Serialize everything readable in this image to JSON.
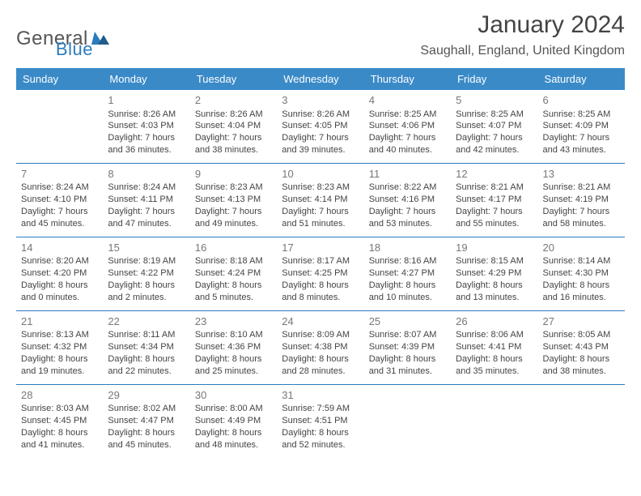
{
  "logo": {
    "part1": "General",
    "part2": "Blue"
  },
  "title": "January 2024",
  "location": "Saughall, England, United Kingdom",
  "colors": {
    "header_bg": "#3a8ac8",
    "header_text": "#ffffff",
    "rule": "#2b7bbd",
    "daynum": "#777777",
    "body_text": "#444444",
    "logo_gray": "#555555",
    "logo_blue": "#2b7bbd",
    "page_bg": "#ffffff"
  },
  "fonts": {
    "title_size_pt": 30,
    "location_size_pt": 16,
    "header_size_pt": 13,
    "daynum_size_pt": 13,
    "cell_size_pt": 11,
    "logo_size_pt": 24
  },
  "weekdays": [
    "Sunday",
    "Monday",
    "Tuesday",
    "Wednesday",
    "Thursday",
    "Friday",
    "Saturday"
  ],
  "weeks": [
    [
      null,
      {
        "n": "1",
        "sr": "Sunrise: 8:26 AM",
        "ss": "Sunset: 4:03 PM",
        "d1": "Daylight: 7 hours",
        "d2": "and 36 minutes."
      },
      {
        "n": "2",
        "sr": "Sunrise: 8:26 AM",
        "ss": "Sunset: 4:04 PM",
        "d1": "Daylight: 7 hours",
        "d2": "and 38 minutes."
      },
      {
        "n": "3",
        "sr": "Sunrise: 8:26 AM",
        "ss": "Sunset: 4:05 PM",
        "d1": "Daylight: 7 hours",
        "d2": "and 39 minutes."
      },
      {
        "n": "4",
        "sr": "Sunrise: 8:25 AM",
        "ss": "Sunset: 4:06 PM",
        "d1": "Daylight: 7 hours",
        "d2": "and 40 minutes."
      },
      {
        "n": "5",
        "sr": "Sunrise: 8:25 AM",
        "ss": "Sunset: 4:07 PM",
        "d1": "Daylight: 7 hours",
        "d2": "and 42 minutes."
      },
      {
        "n": "6",
        "sr": "Sunrise: 8:25 AM",
        "ss": "Sunset: 4:09 PM",
        "d1": "Daylight: 7 hours",
        "d2": "and 43 minutes."
      }
    ],
    [
      {
        "n": "7",
        "sr": "Sunrise: 8:24 AM",
        "ss": "Sunset: 4:10 PM",
        "d1": "Daylight: 7 hours",
        "d2": "and 45 minutes."
      },
      {
        "n": "8",
        "sr": "Sunrise: 8:24 AM",
        "ss": "Sunset: 4:11 PM",
        "d1": "Daylight: 7 hours",
        "d2": "and 47 minutes."
      },
      {
        "n": "9",
        "sr": "Sunrise: 8:23 AM",
        "ss": "Sunset: 4:13 PM",
        "d1": "Daylight: 7 hours",
        "d2": "and 49 minutes."
      },
      {
        "n": "10",
        "sr": "Sunrise: 8:23 AM",
        "ss": "Sunset: 4:14 PM",
        "d1": "Daylight: 7 hours",
        "d2": "and 51 minutes."
      },
      {
        "n": "11",
        "sr": "Sunrise: 8:22 AM",
        "ss": "Sunset: 4:16 PM",
        "d1": "Daylight: 7 hours",
        "d2": "and 53 minutes."
      },
      {
        "n": "12",
        "sr": "Sunrise: 8:21 AM",
        "ss": "Sunset: 4:17 PM",
        "d1": "Daylight: 7 hours",
        "d2": "and 55 minutes."
      },
      {
        "n": "13",
        "sr": "Sunrise: 8:21 AM",
        "ss": "Sunset: 4:19 PM",
        "d1": "Daylight: 7 hours",
        "d2": "and 58 minutes."
      }
    ],
    [
      {
        "n": "14",
        "sr": "Sunrise: 8:20 AM",
        "ss": "Sunset: 4:20 PM",
        "d1": "Daylight: 8 hours",
        "d2": "and 0 minutes."
      },
      {
        "n": "15",
        "sr": "Sunrise: 8:19 AM",
        "ss": "Sunset: 4:22 PM",
        "d1": "Daylight: 8 hours",
        "d2": "and 2 minutes."
      },
      {
        "n": "16",
        "sr": "Sunrise: 8:18 AM",
        "ss": "Sunset: 4:24 PM",
        "d1": "Daylight: 8 hours",
        "d2": "and 5 minutes."
      },
      {
        "n": "17",
        "sr": "Sunrise: 8:17 AM",
        "ss": "Sunset: 4:25 PM",
        "d1": "Daylight: 8 hours",
        "d2": "and 8 minutes."
      },
      {
        "n": "18",
        "sr": "Sunrise: 8:16 AM",
        "ss": "Sunset: 4:27 PM",
        "d1": "Daylight: 8 hours",
        "d2": "and 10 minutes."
      },
      {
        "n": "19",
        "sr": "Sunrise: 8:15 AM",
        "ss": "Sunset: 4:29 PM",
        "d1": "Daylight: 8 hours",
        "d2": "and 13 minutes."
      },
      {
        "n": "20",
        "sr": "Sunrise: 8:14 AM",
        "ss": "Sunset: 4:30 PM",
        "d1": "Daylight: 8 hours",
        "d2": "and 16 minutes."
      }
    ],
    [
      {
        "n": "21",
        "sr": "Sunrise: 8:13 AM",
        "ss": "Sunset: 4:32 PM",
        "d1": "Daylight: 8 hours",
        "d2": "and 19 minutes."
      },
      {
        "n": "22",
        "sr": "Sunrise: 8:11 AM",
        "ss": "Sunset: 4:34 PM",
        "d1": "Daylight: 8 hours",
        "d2": "and 22 minutes."
      },
      {
        "n": "23",
        "sr": "Sunrise: 8:10 AM",
        "ss": "Sunset: 4:36 PM",
        "d1": "Daylight: 8 hours",
        "d2": "and 25 minutes."
      },
      {
        "n": "24",
        "sr": "Sunrise: 8:09 AM",
        "ss": "Sunset: 4:38 PM",
        "d1": "Daylight: 8 hours",
        "d2": "and 28 minutes."
      },
      {
        "n": "25",
        "sr": "Sunrise: 8:07 AM",
        "ss": "Sunset: 4:39 PM",
        "d1": "Daylight: 8 hours",
        "d2": "and 31 minutes."
      },
      {
        "n": "26",
        "sr": "Sunrise: 8:06 AM",
        "ss": "Sunset: 4:41 PM",
        "d1": "Daylight: 8 hours",
        "d2": "and 35 minutes."
      },
      {
        "n": "27",
        "sr": "Sunrise: 8:05 AM",
        "ss": "Sunset: 4:43 PM",
        "d1": "Daylight: 8 hours",
        "d2": "and 38 minutes."
      }
    ],
    [
      {
        "n": "28",
        "sr": "Sunrise: 8:03 AM",
        "ss": "Sunset: 4:45 PM",
        "d1": "Daylight: 8 hours",
        "d2": "and 41 minutes."
      },
      {
        "n": "29",
        "sr": "Sunrise: 8:02 AM",
        "ss": "Sunset: 4:47 PM",
        "d1": "Daylight: 8 hours",
        "d2": "and 45 minutes."
      },
      {
        "n": "30",
        "sr": "Sunrise: 8:00 AM",
        "ss": "Sunset: 4:49 PM",
        "d1": "Daylight: 8 hours",
        "d2": "and 48 minutes."
      },
      {
        "n": "31",
        "sr": "Sunrise: 7:59 AM",
        "ss": "Sunset: 4:51 PM",
        "d1": "Daylight: 8 hours",
        "d2": "and 52 minutes."
      },
      null,
      null,
      null
    ]
  ]
}
